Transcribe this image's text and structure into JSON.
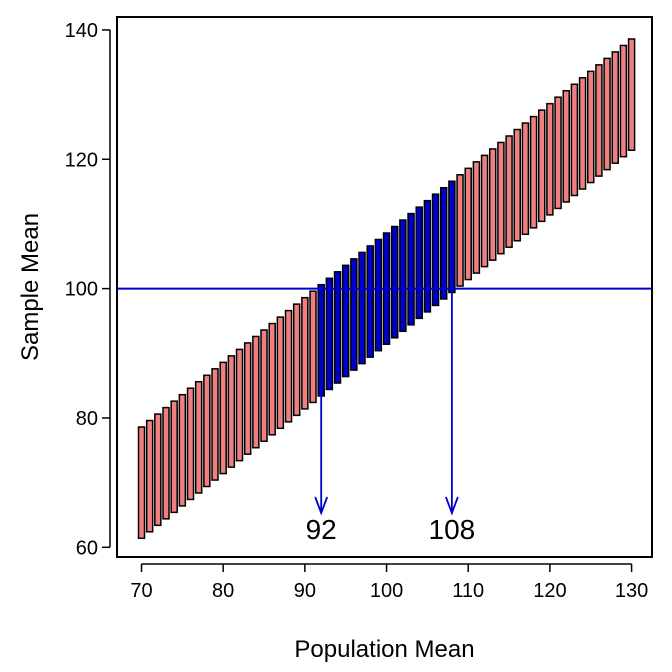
{
  "chart_data": {
    "type": "bar",
    "xlabel": "Population Mean",
    "ylabel": "Sample Mean",
    "xlim": [
      67,
      132.5
    ],
    "ylim": [
      58.5,
      142
    ],
    "xticks": [
      70,
      80,
      90,
      100,
      110,
      120,
      130
    ],
    "yticks": [
      60,
      80,
      100,
      120,
      140
    ],
    "grid": false,
    "interval_half_width": 8.6,
    "x_start": 70,
    "x_end": 130,
    "x_step": 1,
    "colors": {
      "outside": "#f08080",
      "inside": "#0000cd",
      "bar_outline": "#000000",
      "reference": "#0000cd"
    },
    "reference_line": {
      "y": 100,
      "color": "#0000cd"
    },
    "highlight_range": [
      92,
      108
    ],
    "annotations": [
      {
        "x": 92,
        "label": "92"
      },
      {
        "x": 108,
        "label": "108"
      }
    ]
  }
}
